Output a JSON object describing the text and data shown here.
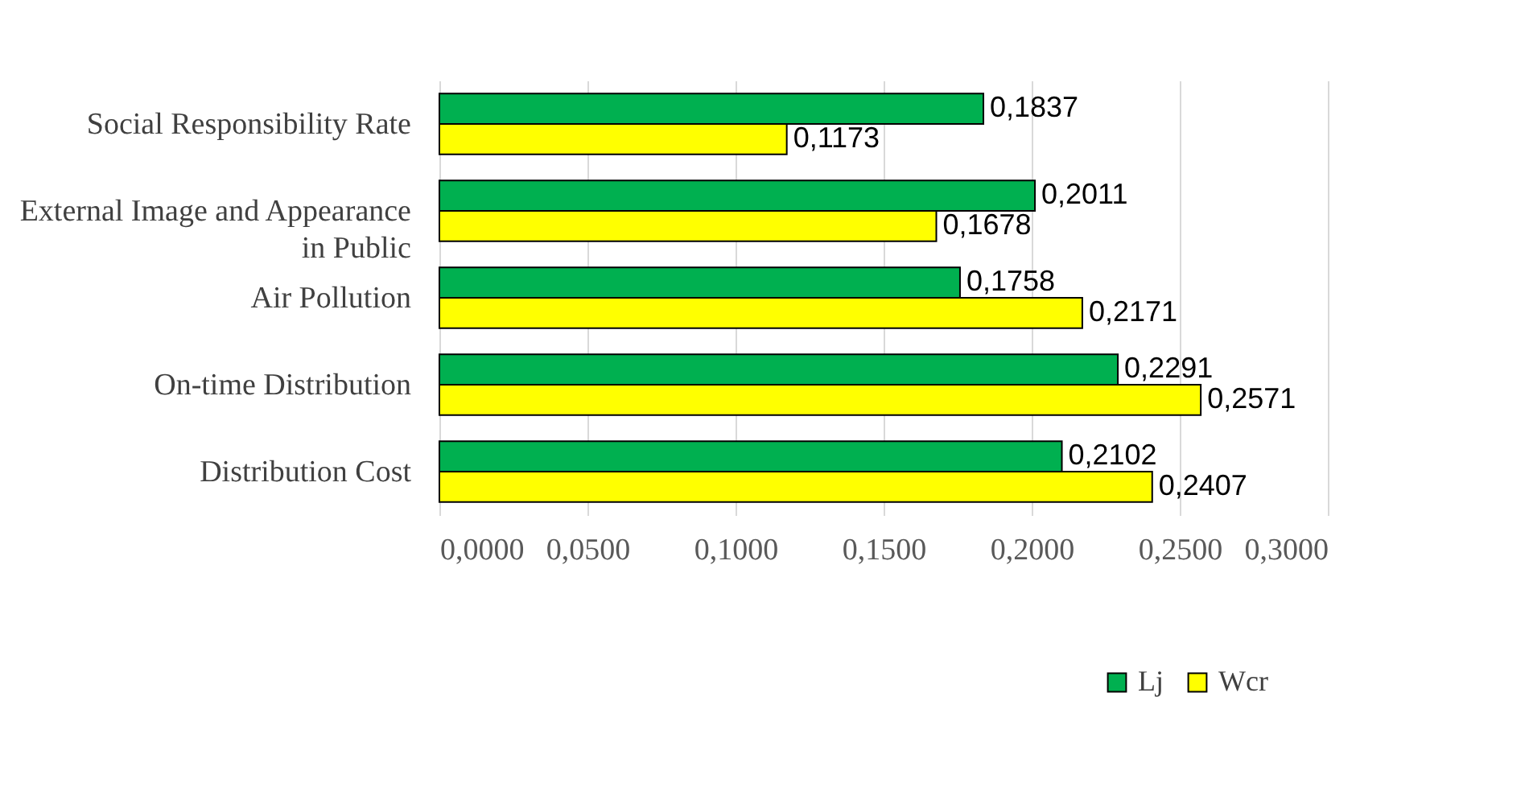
{
  "chart_data": {
    "type": "bar",
    "orientation": "horizontal",
    "categories": [
      "Social Responsibility Rate",
      "External Image and Appearance in Public",
      "Air Pollution",
      "On-time Distribution",
      "Distribution Cost"
    ],
    "series": [
      {
        "name": "Lj",
        "color": "#00b050",
        "values": [
          0.1837,
          0.2011,
          0.1758,
          0.2291,
          0.2102
        ],
        "value_labels": [
          "0,1837",
          "0,2011",
          "0,1758",
          "0,2291",
          "0,2102"
        ]
      },
      {
        "name": "Wcr",
        "color": "#ffff00",
        "values": [
          0.1173,
          0.1678,
          0.2171,
          0.2571,
          0.2407
        ],
        "value_labels": [
          "0,1173",
          "0,1678",
          "0,2171",
          "0,2571",
          "0,2407"
        ]
      }
    ],
    "xlim": [
      0,
      0.3
    ],
    "xticks": [
      {
        "value": 0,
        "label": "0,0000"
      },
      {
        "value": 0.05,
        "label": "0,0500"
      },
      {
        "value": 0.1,
        "label": "0,1000"
      },
      {
        "value": 0.15,
        "label": "0,1500"
      },
      {
        "value": 0.2,
        "label": "0,2000"
      },
      {
        "value": 0.25,
        "label": "0,2500"
      },
      {
        "value": 0.3,
        "label": "0,3000"
      }
    ],
    "grid": "x",
    "legend": "bottom right"
  }
}
